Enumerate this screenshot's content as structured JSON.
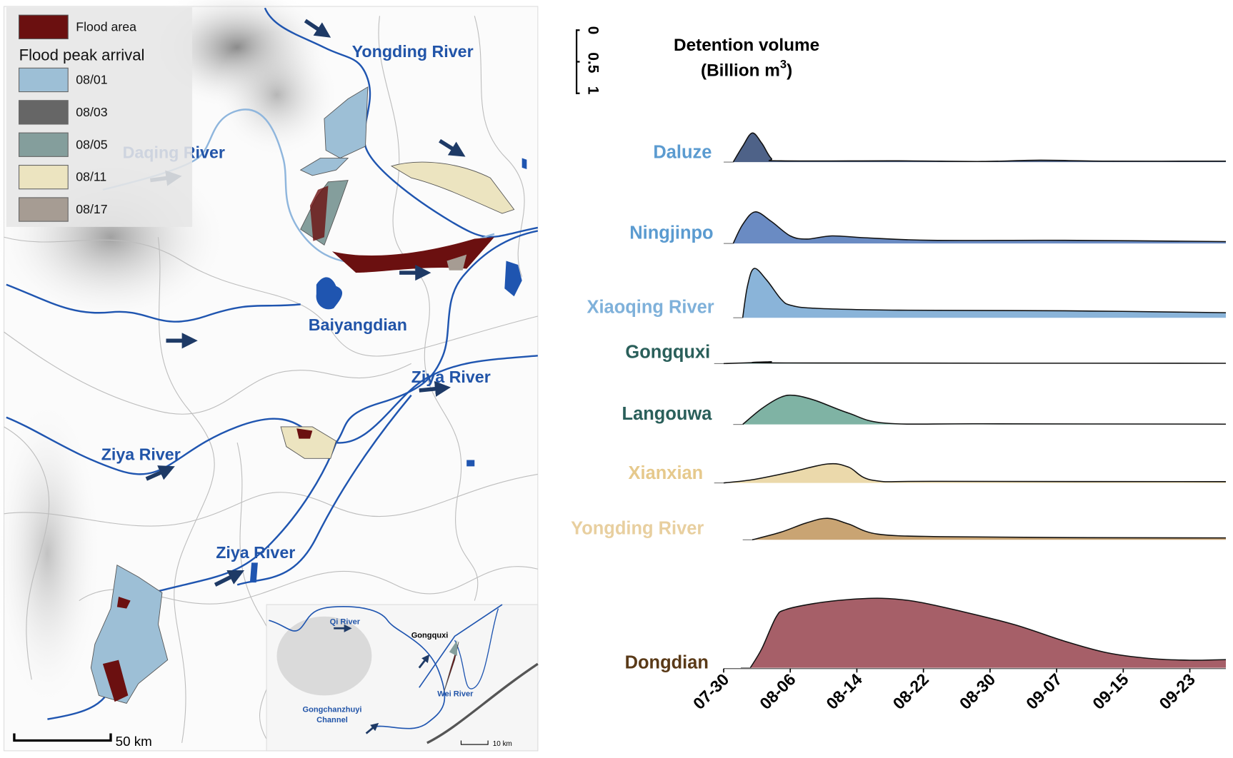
{
  "map": {
    "legend": {
      "flood_area": "Flood area",
      "peak_title": "Flood peak arrival",
      "items": [
        {
          "label": "08/01",
          "color": "#9dbfd6"
        },
        {
          "label": "08/03",
          "color": "#666666"
        },
        {
          "label": "08/05",
          "color": "#849e9c"
        },
        {
          "label": "08/11",
          "color": "#ece4c0"
        },
        {
          "label": "08/17",
          "color": "#a69c93"
        }
      ],
      "flood_color": "#6b1010"
    },
    "labels": {
      "yongding": "Yongding River",
      "daqing": "Daqing River",
      "baiyangdian": "Baiyangdian",
      "ziya1": "Ziya River",
      "ziya2": "Ziya River",
      "ziya3": "Ziya River"
    },
    "scale": "50 km",
    "inset": {
      "qi": "Qi River",
      "gongquxi": "Gongquxi",
      "channel_1": "Gongchanzhuyi",
      "channel_2": "Channel",
      "wei": "Wei River",
      "scale": "10 km"
    }
  },
  "chart_data": {
    "type": "area",
    "subtype": "ridgeline",
    "title": "Detention volume",
    "unit": "(Billion m",
    "unit_sup": "3",
    "unit_close": ")",
    "scale_bar": {
      "labels": [
        "0",
        "0.5",
        "1"
      ],
      "range": [
        0,
        1
      ]
    },
    "x_ticks": [
      {
        "label": "07-30",
        "day": 0
      },
      {
        "label": "08-06",
        "day": 7
      },
      {
        "label": "08-14",
        "day": 15
      },
      {
        "label": "08-22",
        "day": 23
      },
      {
        "label": "08-30",
        "day": 31
      },
      {
        "label": "09-07",
        "day": 39
      },
      {
        "label": "09-15",
        "day": 47
      },
      {
        "label": "09-23",
        "day": 55
      }
    ],
    "x_unit": "days since 07-30",
    "series": [
      {
        "name": "Daluze",
        "fill": "#4e6288",
        "label_color": "#5b9bd0",
        "points": [
          [
            1,
            0
          ],
          [
            2,
            0.25
          ],
          [
            3,
            0.46
          ],
          [
            4,
            0.3
          ],
          [
            5,
            0.06
          ],
          [
            6,
            0.02
          ],
          [
            20,
            0.02
          ],
          [
            30,
            0.01
          ],
          [
            37,
            0.03
          ],
          [
            45,
            0.015
          ],
          [
            61,
            0.015
          ]
        ]
      },
      {
        "name": "Ningjinpo",
        "fill": "#6a8bc3",
        "label_color": "#5b9bd0",
        "points": [
          [
            1,
            0
          ],
          [
            2,
            0.3
          ],
          [
            3.3,
            0.5
          ],
          [
            5,
            0.35
          ],
          [
            7,
            0.12
          ],
          [
            9,
            0.07
          ],
          [
            12,
            0.12
          ],
          [
            16,
            0.09
          ],
          [
            24,
            0.05
          ],
          [
            40,
            0.05
          ],
          [
            61,
            0.03
          ]
        ]
      },
      {
        "name": "Xiaoqing River",
        "fill": "#8ab4d9",
        "label_color": "#7fb1da",
        "points": [
          [
            2,
            0
          ],
          [
            2.5,
            0.5
          ],
          [
            3.2,
            0.78
          ],
          [
            4.5,
            0.6
          ],
          [
            6,
            0.3
          ],
          [
            7,
            0.2
          ],
          [
            10,
            0.15
          ],
          [
            20,
            0.12
          ],
          [
            40,
            0.11
          ],
          [
            61,
            0.08
          ]
        ]
      },
      {
        "name": "Gongquxi",
        "fill": "#2e6b63",
        "label_color": "#2a5f5a",
        "points": [
          [
            0,
            0
          ],
          [
            4,
            0.02
          ],
          [
            5,
            0.03
          ],
          [
            7,
            0.01
          ],
          [
            61,
            0.005
          ]
        ]
      },
      {
        "name": "Langouwa",
        "fill": "#7fb3a4",
        "label_color": "#2a5f5a",
        "points": [
          [
            2,
            0
          ],
          [
            4,
            0.25
          ],
          [
            6,
            0.43
          ],
          [
            7.5,
            0.46
          ],
          [
            10,
            0.38
          ],
          [
            14,
            0.18
          ],
          [
            18.5,
            0.02
          ],
          [
            30,
            0.01
          ],
          [
            61,
            0.005
          ]
        ]
      },
      {
        "name": "Xianxian",
        "fill": "#ebd9ab",
        "label_color": "#e6c98c",
        "points": [
          [
            0,
            0
          ],
          [
            3,
            0.05
          ],
          [
            7,
            0.17
          ],
          [
            11.5,
            0.3
          ],
          [
            14,
            0.25
          ],
          [
            17,
            0.04
          ],
          [
            25,
            0.025
          ],
          [
            61,
            0.02
          ]
        ]
      },
      {
        "name": "Yongding River",
        "fill": "#c9a473",
        "label_color": "#e8cf9f",
        "points": [
          [
            3,
            0
          ],
          [
            6,
            0.12
          ],
          [
            9,
            0.27
          ],
          [
            11.5,
            0.34
          ],
          [
            14,
            0.25
          ],
          [
            17.5,
            0.09
          ],
          [
            25,
            0.05
          ],
          [
            40,
            0.035
          ],
          [
            61,
            0.03
          ]
        ]
      },
      {
        "name": "Dongdian",
        "fill": "#a65f68",
        "label_color": "#5a3a18",
        "points": [
          [
            2.8,
            0
          ],
          [
            4,
            0.3
          ],
          [
            5.5,
            0.8
          ],
          [
            6.5,
            0.92
          ],
          [
            10,
            1.02
          ],
          [
            14,
            1.08
          ],
          [
            18,
            1.1
          ],
          [
            22,
            1.05
          ],
          [
            28,
            0.88
          ],
          [
            34,
            0.68
          ],
          [
            40,
            0.42
          ],
          [
            45,
            0.24
          ],
          [
            50,
            0.15
          ],
          [
            55,
            0.12
          ],
          [
            61,
            0.13
          ]
        ]
      }
    ]
  }
}
